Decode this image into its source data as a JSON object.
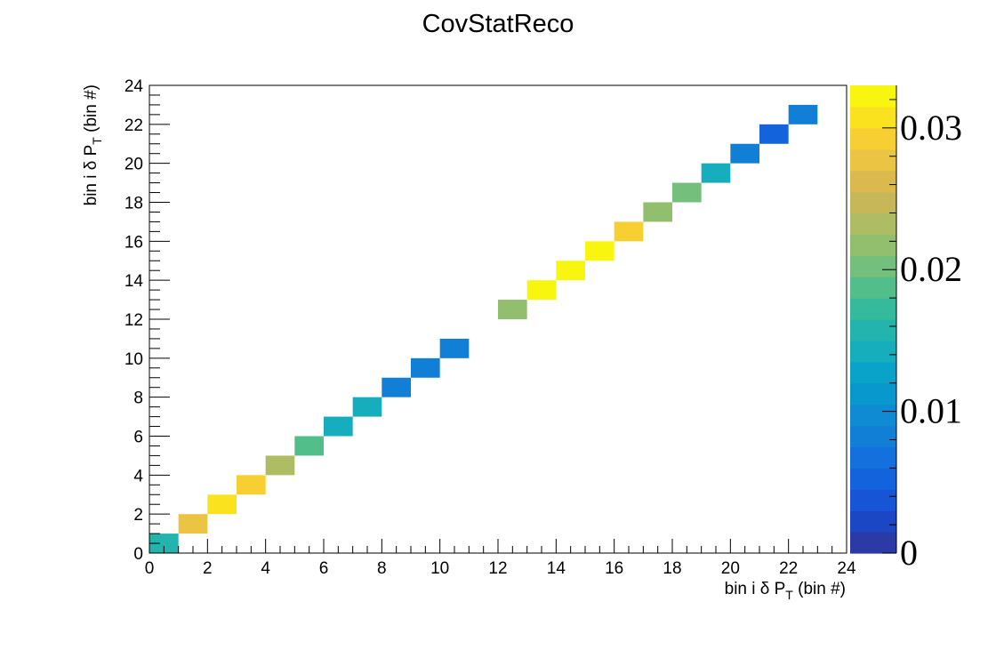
{
  "chart_data": {
    "type": "heatmap",
    "title": "CovStatReco",
    "xlabel": {
      "main": "bin i δ P",
      "sub": "T",
      "tail": " (bin #)"
    },
    "ylabel": {
      "main": "bin i δ P",
      "sub": "T",
      "tail": " (bin #)"
    },
    "xlim": [
      0,
      24
    ],
    "ylim": [
      0,
      24
    ],
    "x_ticks": [
      "0",
      "2",
      "4",
      "6",
      "8",
      "10",
      "12",
      "14",
      "16",
      "18",
      "20",
      "22",
      "24"
    ],
    "y_ticks": [
      "0",
      "2",
      "4",
      "6",
      "8",
      "10",
      "12",
      "14",
      "16",
      "18",
      "20",
      "22",
      "24"
    ],
    "colorbar": {
      "range": [
        0,
        0.033
      ],
      "tick_values": [
        0,
        0.01,
        0.02,
        0.03
      ],
      "tick_labels": [
        "0",
        "0.01",
        "0.02",
        "0.03"
      ]
    },
    "cells": [
      {
        "x": 0,
        "y": 0,
        "value": 0.0155
      },
      {
        "x": 1,
        "y": 1,
        "value": 0.027
      },
      {
        "x": 2,
        "y": 2,
        "value": 0.0305
      },
      {
        "x": 3,
        "y": 3,
        "value": 0.029
      },
      {
        "x": 4,
        "y": 4,
        "value": 0.023
      },
      {
        "x": 5,
        "y": 5,
        "value": 0.0185
      },
      {
        "x": 6,
        "y": 6,
        "value": 0.0145
      },
      {
        "x": 7,
        "y": 7,
        "value": 0.0145
      },
      {
        "x": 8,
        "y": 8,
        "value": 0.0075
      },
      {
        "x": 9,
        "y": 9,
        "value": 0.0075
      },
      {
        "x": 10,
        "y": 10,
        "value": 0.0075
      },
      {
        "x": 12,
        "y": 12,
        "value": 0.0215
      },
      {
        "x": 13,
        "y": 13,
        "value": 0.033
      },
      {
        "x": 14,
        "y": 14,
        "value": 0.033
      },
      {
        "x": 15,
        "y": 15,
        "value": 0.0325
      },
      {
        "x": 16,
        "y": 16,
        "value": 0.0295
      },
      {
        "x": 17,
        "y": 17,
        "value": 0.021
      },
      {
        "x": 18,
        "y": 18,
        "value": 0.02
      },
      {
        "x": 19,
        "y": 19,
        "value": 0.0145
      },
      {
        "x": 20,
        "y": 20,
        "value": 0.0085
      },
      {
        "x": 21,
        "y": 21,
        "value": 0.0055
      },
      {
        "x": 22,
        "y": 22,
        "value": 0.0075
      }
    ],
    "palette": [
      "#2a3aa6",
      "#1b47c4",
      "#1656d6",
      "#1363dc",
      "#1470dc",
      "#127fd6",
      "#0e8bd2",
      "#0898ce",
      "#09a3c9",
      "#16adbd",
      "#23b5ad",
      "#35bb9b",
      "#52bf8a",
      "#73bf7b",
      "#92bf6e",
      "#aebc63",
      "#c8b758",
      "#dcb94e",
      "#ecc444",
      "#f8cf33",
      "#fbe21f",
      "#f8f50e"
    ],
    "grid": false,
    "legend": "none"
  }
}
